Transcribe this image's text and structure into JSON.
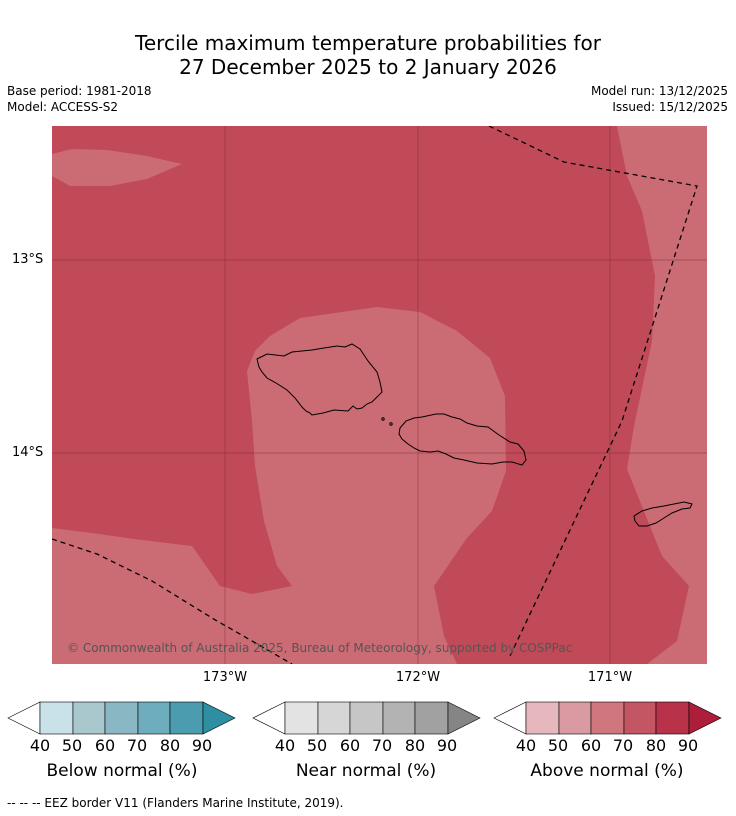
{
  "title_line1": "Tercile maximum temperature probabilities for",
  "title_line2": "27 December 2025 to 2 January 2026",
  "base_period": "Base period: 1981-2018",
  "model": "Model: ACCESS-S2",
  "model_run": "Model run: 13/12/2025",
  "issued": "Issued: 15/12/2025",
  "copyright": "© Commonwealth of Australia 2025, Bureau of Meteorology, supported by COSPPac",
  "lon_ticks": [
    "173°W",
    "172°W",
    "171°W"
  ],
  "lat_ticks": [
    "13°S",
    "14°S"
  ],
  "colorbars": [
    {
      "label": "Below normal (%)",
      "ticks": [
        "40",
        "50",
        "60",
        "70",
        "80",
        "90"
      ],
      "colors": [
        "#ffffff",
        "#c9e1e8",
        "#a8c8ce",
        "#8ab7c4",
        "#6eadbd",
        "#4a9cae",
        "#2e8fa3"
      ]
    },
    {
      "label": "Near normal (%)",
      "ticks": [
        "40",
        "50",
        "60",
        "70",
        "80",
        "90"
      ],
      "colors": [
        "#ffffff",
        "#e3e3e3",
        "#d6d6d6",
        "#c6c6c6",
        "#b3b3b3",
        "#a1a1a1",
        "#858585"
      ]
    },
    {
      "label": "Above normal (%)",
      "ticks": [
        "40",
        "50",
        "60",
        "70",
        "80",
        "90"
      ],
      "colors": [
        "#ffffff",
        "#e6b8bd",
        "#d99aa1",
        "#d0767e",
        "#c45562",
        "#b8324a",
        "#ad1e3a"
      ]
    }
  ],
  "footer": "--  --  -- EEZ border V11 (Flanders Marine Institute, 2019).",
  "colors": {
    "above_70_80": "#c04a57",
    "above_60_70": "#cb6b74"
  }
}
